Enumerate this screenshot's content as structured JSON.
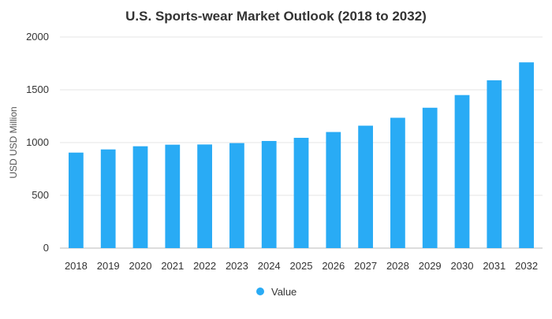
{
  "chart_data": {
    "type": "bar",
    "title": "U.S. Sports-wear Market Outlook (2018 to 2032)",
    "xlabel": "",
    "ylabel": "USD USD Million",
    "ylim": [
      0,
      2000
    ],
    "yticks": [
      0,
      500,
      1000,
      1500,
      2000
    ],
    "grid": true,
    "legend_position": "bottom",
    "categories": [
      "2018",
      "2019",
      "2020",
      "2021",
      "2022",
      "2023",
      "2024",
      "2025",
      "2026",
      "2027",
      "2028",
      "2029",
      "2030",
      "2031",
      "2032"
    ],
    "series": [
      {
        "name": "Value",
        "color": "#29abf5",
        "values": [
          905,
          935,
          965,
          980,
          982,
          995,
          1015,
          1045,
          1100,
          1160,
          1235,
          1330,
          1450,
          1590,
          1760
        ]
      }
    ]
  }
}
